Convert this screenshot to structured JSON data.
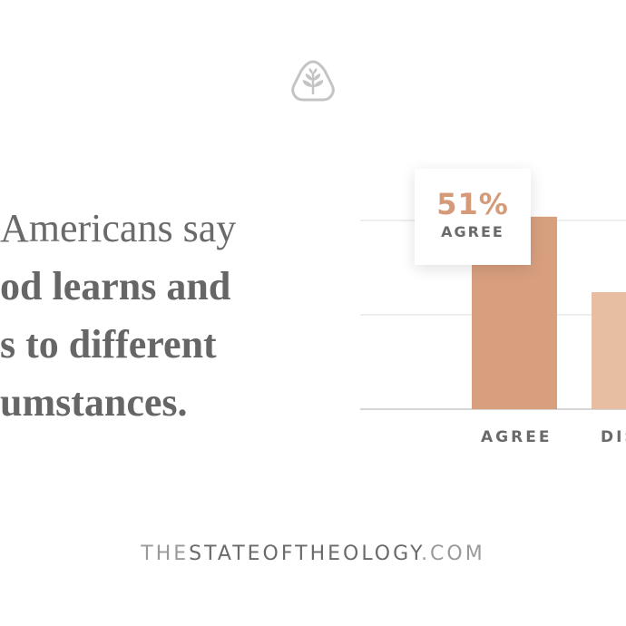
{
  "headline": {
    "line1": "Americans say",
    "line2": "od learns and",
    "line3": "s to different",
    "line4": "umstances."
  },
  "chart_data": {
    "type": "bar",
    "categories": [
      "AGREE",
      "DISA"
    ],
    "values": [
      51,
      31
    ],
    "callout": {
      "value": "51%",
      "label": "AGREE"
    },
    "colors": [
      "#d89f7e",
      "#e7bea2"
    ],
    "grid": true,
    "ylim": [
      0,
      100
    ]
  },
  "footer": {
    "prefix": "THE",
    "main": "STATEOFTHEOLOGY",
    "suffix": ".COM"
  },
  "logo": {
    "icon": "tree-leaf-icon"
  }
}
